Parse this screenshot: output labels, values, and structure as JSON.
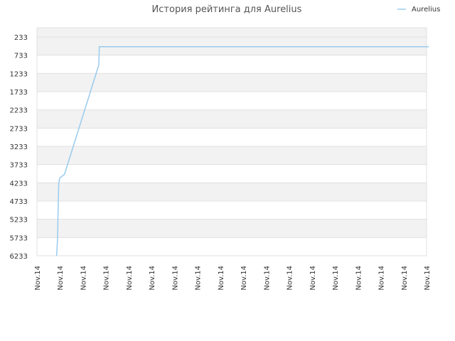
{
  "chart_data": {
    "type": "line",
    "title": "История рейтинга для Aurelius",
    "xlabel": "",
    "ylabel": "",
    "y_axis": {
      "reversed": true,
      "range": [
        233,
        6233
      ]
    },
    "y_ticks": [
      "233",
      "733",
      "1233",
      "1733",
      "2233",
      "2733",
      "3233",
      "3733",
      "4233",
      "4733",
      "5233",
      "5733",
      "6233"
    ],
    "x_ticks": [
      "Nov.14",
      "Nov.14",
      "Nov.14",
      "Nov.14",
      "Nov.14",
      "Nov.14",
      "Nov.14",
      "Nov.14",
      "Nov.14",
      "Nov.14",
      "Nov.14",
      "Nov.14",
      "Nov.14",
      "Nov.14",
      "Nov.14",
      "Nov.14",
      "Nov.14",
      "Nov.14"
    ],
    "legend": {
      "position": "top-right",
      "entries": [
        "Aurelius"
      ]
    },
    "grid": true,
    "series": [
      {
        "name": "Aurelius",
        "color": "#99ccee",
        "points": [
          {
            "x": 0.86,
            "y": 6233
          },
          {
            "x": 0.9,
            "y": 5750
          },
          {
            "x": 0.92,
            "y": 5000
          },
          {
            "x": 0.95,
            "y": 4250
          },
          {
            "x": 1.0,
            "y": 4100
          },
          {
            "x": 1.2,
            "y": 4000
          },
          {
            "x": 2.7,
            "y": 1000
          },
          {
            "x": 2.72,
            "y": 500
          },
          {
            "x": 3.0,
            "y": 500
          },
          {
            "x": 17.1,
            "y": 500
          }
        ]
      }
    ]
  }
}
